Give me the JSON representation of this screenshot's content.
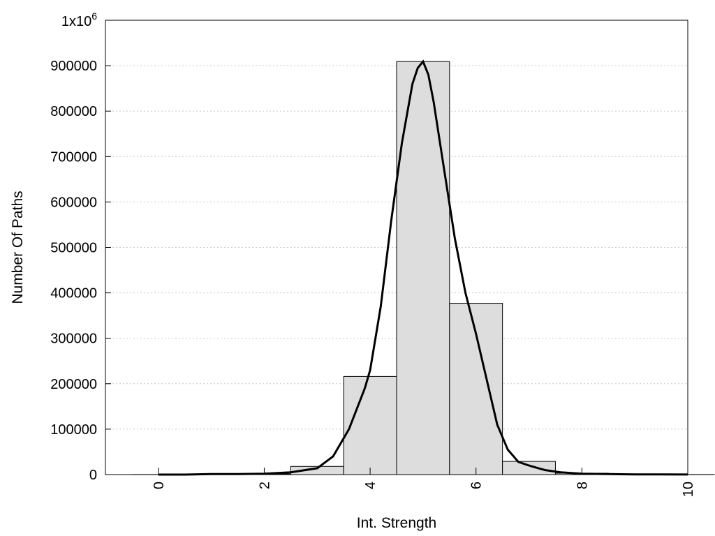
{
  "chart_data": {
    "type": "bar",
    "title": "",
    "xlabel": "Int. Strength",
    "ylabel": "Number Of Paths",
    "xlim": [
      -1,
      10
    ],
    "ylim": [
      0,
      1000000
    ],
    "x_ticks": [
      "0",
      "2",
      "4",
      "6",
      "8",
      "10"
    ],
    "y_ticks": [
      "0",
      "100000",
      "200000",
      "300000",
      "400000",
      "500000",
      "600000",
      "700000",
      "800000",
      "900000"
    ],
    "y_top_label": {
      "base": "1x10",
      "exp": "6"
    },
    "grid": "horizontal dotted",
    "bin_width": 1,
    "bars": {
      "x": [
        0,
        1,
        2,
        3,
        4,
        5,
        6,
        7,
        8,
        9,
        10
      ],
      "values": [
        200,
        500,
        1500,
        18000,
        216000,
        909000,
        377000,
        29000,
        3000,
        500,
        200
      ]
    },
    "curve": {
      "x": [
        0,
        0.5,
        1,
        1.5,
        2,
        2.5,
        3,
        3.3,
        3.6,
        3.9,
        4,
        4.2,
        4.4,
        4.6,
        4.8,
        4.9,
        5,
        5.1,
        5.2,
        5.4,
        5.6,
        5.8,
        6,
        6.2,
        6.4,
        6.6,
        6.8,
        7,
        7.3,
        7.6,
        8,
        8.5,
        9,
        9.5,
        10
      ],
      "values": [
        0,
        0,
        1000,
        1000,
        2000,
        5000,
        14000,
        40000,
        100000,
        190000,
        230000,
        370000,
        560000,
        730000,
        860000,
        895000,
        909000,
        880000,
        820000,
        670000,
        520000,
        400000,
        310000,
        210000,
        110000,
        55000,
        28000,
        20000,
        10000,
        5000,
        2000,
        1000,
        500,
        300,
        200
      ]
    }
  }
}
